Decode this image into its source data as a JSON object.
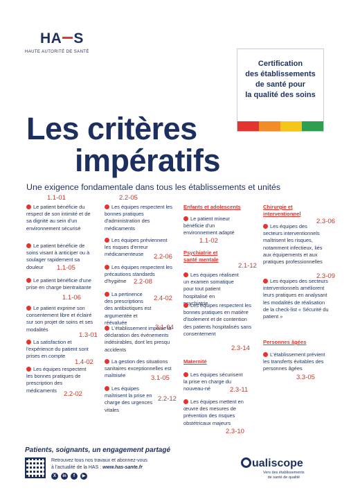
{
  "logo": {
    "name_prefix": "HA",
    "name_suffix": "S",
    "subtitle": "HAUTE AUTORITÉ DE SANTÉ"
  },
  "certification": {
    "text_lines": [
      "Certification",
      "des établissements",
      "de santé pour",
      "la qualité des soins"
    ],
    "bar_colors": [
      "#e3342f",
      "#f28c28",
      "#f5c518",
      "#2e9e4f"
    ]
  },
  "title": {
    "line1": "Les critères",
    "line2": "impératifs"
  },
  "subtitle": "Une exigence fondamentale dans tous les établissements et unités",
  "col1": [
    {
      "code": "1.1-01",
      "text": "Le patient bénéficie du respect de son intimité et de sa dignité au sein d'un environnement sécurisé"
    },
    {
      "code": "1.1-05",
      "text": "Le patient bénéficie de soins visant à anticiper ou à soulager rapidement sa douleur"
    },
    {
      "code": "1.1-06",
      "text": "Le patient bénéficie d'une prise en charge bientraitante"
    },
    {
      "code": "1.3-01",
      "text": "Le patient exprime son consentement libre et éclairé sur son projet de soins et ses modalités"
    },
    {
      "code": "1.4-02",
      "text": "La satisfaction et l'expérience du patient sont prises en compte"
    },
    {
      "code": "2.2-02",
      "text": "Les équipes respectent les bonnes pratiques de prescription des médicaments"
    }
  ],
  "col2": [
    {
      "code": "2.2-05",
      "text": "Les équipes respectent les bonnes pratiques d'administration des médicaments"
    },
    {
      "code": "2.2-06",
      "text": "Les équipes préviennent les risques d'erreur médicamenteuse"
    },
    {
      "code": "2.2-08",
      "text": "Les équipes respectent les précautions standards d'hygiène"
    },
    {
      "code": "2.4-02",
      "text": "La pertinence des prescriptions des antibiotiques est argumentée et réévaluée"
    },
    {
      "code": "3.1-04",
      "text": "L'établissement impulse la déclaration des événements indésirables, dont les presqu accidents"
    },
    {
      "code": "3.1-05",
      "text": "La gestion des situations sanitaires exceptionnelles est maîtrisée"
    },
    {
      "code": "2.2-12",
      "text": "Les équipes maîtrisent la prise en charge des urgences vitales"
    }
  ],
  "col3": {
    "heading_children": "Enfants et adolescents",
    "children": {
      "code": "1.1-02",
      "text": "Le patient mineur bénéficie d'un environnement adapté"
    },
    "heading_psy": "Psychiatrie et santé mentale",
    "psy": [
      {
        "code": "2.1-12",
        "text": "Les équipes réalisent un examen somatique pour tout patient hospitalisé en psychiatrie"
      },
      {
        "code": "2.3-14",
        "text": "Les équipes respectent les bonnes pratiques en matière d'isolement et de contention des patients hospitalisés sans consentement"
      }
    ],
    "heading_mat": "Maternité",
    "mat": [
      {
        "code": "2.3-11",
        "text": "Les équipes sécurisent la prise en charge du nouveau-né"
      },
      {
        "code": "2.3-10",
        "text": "Les équipes mettent en œuvre des mesures de prévention des risques obstétricaux majeurs"
      }
    ]
  },
  "col4": {
    "heading_surgery": "Chirurgie et interventionnel",
    "surgery": [
      {
        "code": "2.3-06",
        "text": "Les équipes des secteurs interventionnels maîtrisent les risques, notamment infectieux, liés aux équipements et aux pratiques professionnelles"
      },
      {
        "code": "2.3-09",
        "text": "Les équipes des secteurs interventionnels améliorent leurs pratiques en analysant les modalités de réalisation de la check-list « Sécurité du patient »"
      }
    ],
    "heading_elderly": "Personnes âgées",
    "elderly": {
      "code": "3.3-05",
      "text": "L'établissement prévient les transferts évitables des personnes âgées"
    }
  },
  "footer": {
    "tagline": "Patients, soignants, un engagement partagé",
    "text_line1": "Retrouvez tous nos travaux et abonnez-vous",
    "text_line2": "à l'actualité de la HAS : ",
    "url": "www.has-sante.fr",
    "social_icons": [
      "x-icon",
      "linkedin-icon",
      "facebook-icon",
      "youtube-icon"
    ],
    "qualiscope": "ualiscope",
    "qualiscope_sub1": "Vers des établissements",
    "qualiscope_sub2": "de santé de qualité"
  }
}
